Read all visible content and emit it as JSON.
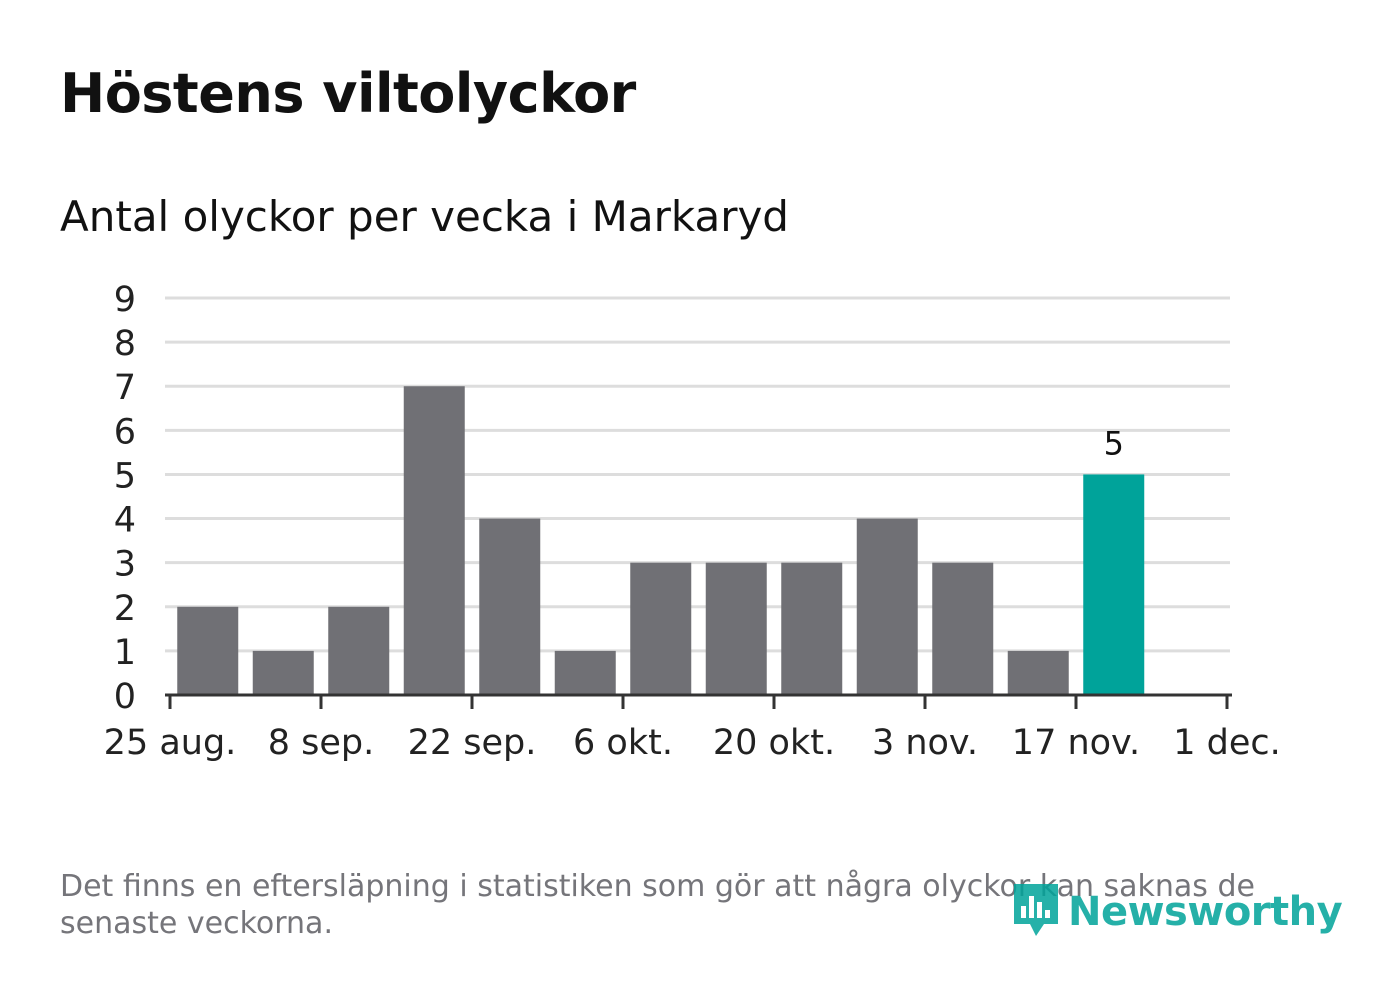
{
  "title": "Höstens viltolyckor",
  "subtitle": "Antal olyckor per vecka i Markaryd",
  "footnote": "Det finns en eftersläpning i statistiken som gör att några olyckor kan saknas de senaste veckorna.",
  "logo": {
    "text": "Newsworthy",
    "icon": "bar-chart-speech-bubble-icon"
  },
  "colors": {
    "bar": "#707075",
    "highlight": "#00a39a",
    "grid": "#dddddd",
    "axis": "#333333",
    "text": "#111111"
  },
  "chart_data": {
    "type": "bar",
    "title": "Höstens viltolyckor",
    "subtitle": "Antal olyckor per vecka i Markaryd",
    "xlabel": "",
    "ylabel": "",
    "x_ticks": [
      "25 aug.",
      "8 sep.",
      "22 sep.",
      "6 okt.",
      "20 okt.",
      "3 nov.",
      "17 nov.",
      "1 dec."
    ],
    "weeks": [
      "1 sep.",
      "8 sep.",
      "15 sep.",
      "22 sep.",
      "29 sep.",
      "6 okt.",
      "13 okt.",
      "20 okt.",
      "27 okt.",
      "3 nov.",
      "10 nov.",
      "17 nov.",
      "24 nov."
    ],
    "values": [
      2,
      1,
      2,
      7,
      4,
      1,
      3,
      3,
      3,
      4,
      3,
      1,
      5
    ],
    "highlight_index": 12,
    "highlight_label": "5",
    "ylim": [
      0,
      9
    ],
    "y_ticks": [
      "0",
      "1",
      "2",
      "3",
      "4",
      "5",
      "6",
      "7",
      "8",
      "9"
    ],
    "grid": true,
    "legend": "none"
  }
}
